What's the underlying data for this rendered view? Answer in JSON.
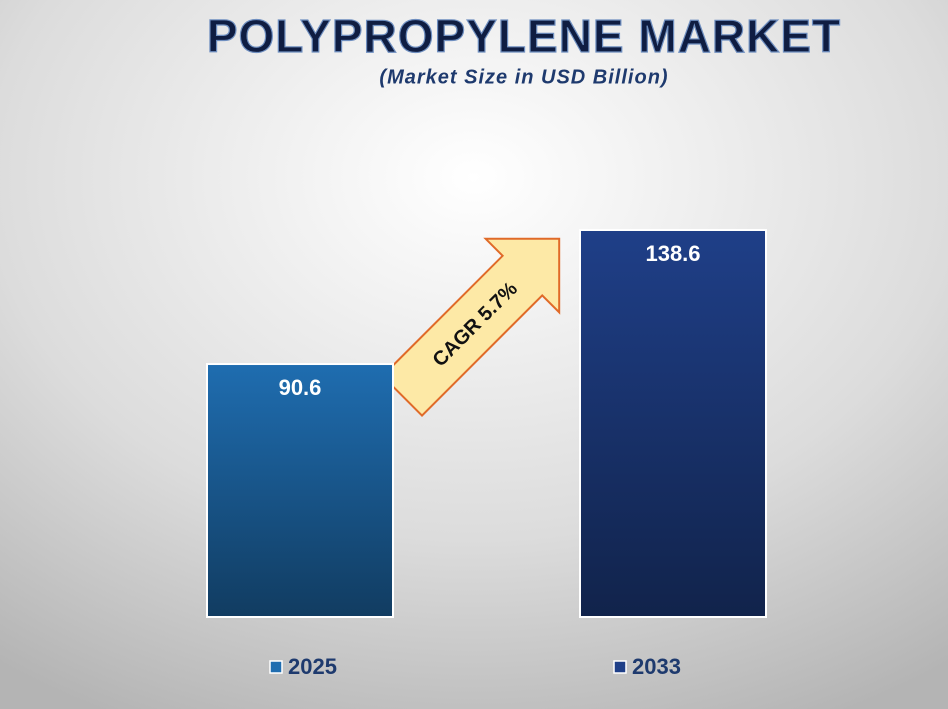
{
  "chart_data": {
    "type": "bar",
    "title": "POLYPROPYLENE MARKET",
    "subtitle": "(Market Size in USD Billion)",
    "annotation": "CAGR 5.7%",
    "categories": [
      "2025",
      "2033"
    ],
    "values": [
      90.6,
      138.6
    ],
    "colors": [
      "#1f6db0",
      "#1f3f88"
    ],
    "legend": true
  }
}
